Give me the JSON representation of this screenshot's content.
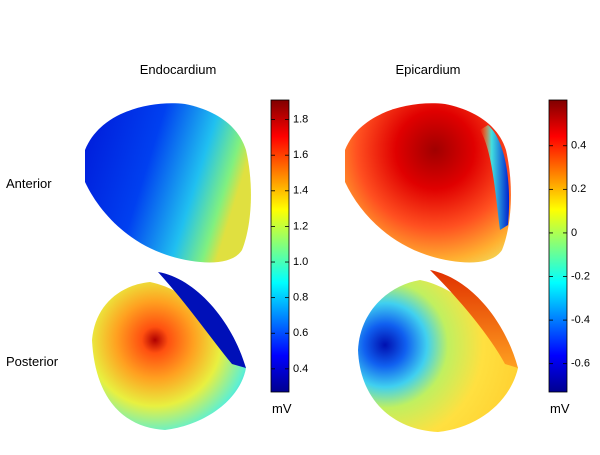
{
  "columns": [
    "Endocardium",
    "Epicardium"
  ],
  "rows": [
    "Anterior",
    "Posterior"
  ],
  "colorbars": [
    {
      "lim": [
        0.27,
        1.91
      ],
      "ticks": [
        0.4,
        0.6,
        0.8,
        {
          "value": 1,
          "label": "1.0"
        },
        1.2,
        1.4,
        1.6,
        1.8
      ],
      "unit": "mV"
    },
    {
      "lim": [
        -0.73,
        0.61
      ],
      "ticks": [
        -0.6,
        -0.4,
        -0.2,
        0,
        0.2,
        0.4
      ],
      "unit": "mV"
    }
  ]
}
